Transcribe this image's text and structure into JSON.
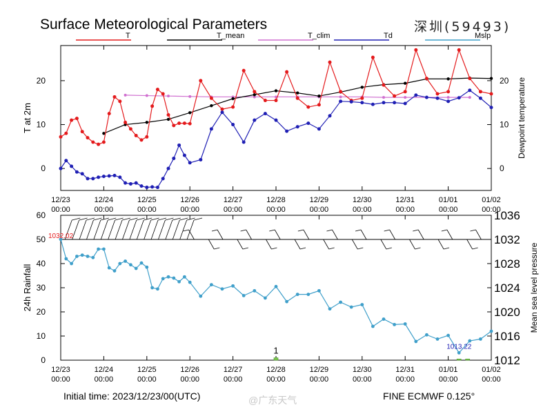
{
  "header": {
    "title": "Surface Meteorological Parameters",
    "station": "深圳(59493)"
  },
  "footer": {
    "initial_time": "Initial time: 2023/12/23/00(UTC)",
    "model": "FINE ECMWF 0.125°",
    "watermark": "@广东天气"
  },
  "colors": {
    "T": "#e41a1c",
    "T_mean": "#000000",
    "T_clim": "#d070d0",
    "Td": "#1f1fb4",
    "Mslp": "#3f9fca",
    "rain": "#7ec850"
  },
  "chart_data": [
    {
      "type": "line",
      "title": "",
      "legend": [
        "T",
        "T_mean",
        "T_clim",
        "Td",
        "Mslp"
      ],
      "legend_placement": "top",
      "ylabel": "T at 2m",
      "ylabel_right": "Dewpoint temperature",
      "ylim": [
        -5,
        28
      ],
      "yticks": [
        0,
        10,
        20
      ],
      "x_labels": [
        "12/23 00:00",
        "12/24 00:00",
        "12/25 00:00",
        "12/26 00:00",
        "12/27 00:00",
        "12/28 00:00",
        "12/29 00:00",
        "12/30 00:00",
        "12/31 00:00",
        "01/01 00:00",
        "01/02 00:00"
      ],
      "x_unit": "days since 12/23 00:00",
      "series": [
        {
          "name": "T",
          "x": [
            0,
            0.125,
            0.25,
            0.375,
            0.5,
            0.625,
            0.75,
            0.875,
            1.0,
            1.125,
            1.25,
            1.375,
            1.5,
            1.625,
            1.75,
            1.875,
            2.0,
            2.125,
            2.25,
            2.375,
            2.5,
            2.625,
            2.75,
            2.875,
            3.0,
            3.25,
            3.5,
            3.75,
            4.0,
            4.25,
            4.5,
            4.75,
            5.0,
            5.25,
            5.5,
            5.75,
            6.0,
            6.25,
            6.5,
            6.75,
            7.0,
            7.25,
            7.5,
            7.75,
            8.0,
            8.25,
            8.5,
            8.75,
            9.0,
            9.25,
            9.5,
            9.75,
            10.0
          ],
          "values": [
            7.2,
            8.0,
            11.0,
            11.4,
            8.4,
            7.0,
            6.0,
            5.5,
            6.0,
            12.5,
            16.3,
            15.3,
            10.5,
            9.0,
            7.5,
            6.5,
            7.2,
            14.2,
            18.0,
            17.0,
            12.2,
            9.8,
            10.3,
            10.3,
            10.2,
            20.0,
            16.0,
            13.5,
            14.0,
            22.3,
            17.5,
            15.5,
            15.5,
            22.0,
            16.0,
            14.0,
            14.5,
            24.2,
            17.5,
            15.5,
            16.0,
            25.3,
            19.0,
            16.5,
            17.5,
            27.0,
            20.5,
            17.0,
            17.5,
            27.0,
            20.5,
            17.5,
            17.0
          ]
        },
        {
          "name": "T_mean",
          "x": [
            1.0,
            1.5,
            2.0,
            2.5,
            3.0,
            3.5,
            4.0,
            4.5,
            5.0,
            5.5,
            6.0,
            6.5,
            7.0,
            7.5,
            8.0,
            8.5,
            9.0,
            9.5,
            10.0
          ],
          "values": [
            8.0,
            10.0,
            10.5,
            11.2,
            12.7,
            14.3,
            15.9,
            16.8,
            17.7,
            17.2,
            16.5,
            17.4,
            18.5,
            19.1,
            19.4,
            20.4,
            20.4,
            20.6,
            20.5
          ]
        },
        {
          "name": "T_clim",
          "x": [
            1.5,
            2.0,
            2.5,
            3.0,
            3.5,
            4.0,
            4.5,
            5.0,
            5.5,
            6.0,
            6.5,
            7.0,
            7.5,
            8.0,
            8.5,
            9.0,
            9.5
          ],
          "values": [
            16.7,
            16.6,
            16.5,
            16.4,
            16.3,
            16.3,
            16.3,
            16.3,
            16.3,
            16.3,
            16.3,
            16.3,
            16.2,
            16.2,
            16.2,
            16.2,
            16.2
          ]
        },
        {
          "name": "Td",
          "x": [
            0,
            0.125,
            0.25,
            0.375,
            0.5,
            0.625,
            0.75,
            0.875,
            1.0,
            1.125,
            1.25,
            1.375,
            1.5,
            1.625,
            1.75,
            1.875,
            2.0,
            2.125,
            2.25,
            2.375,
            2.5,
            2.625,
            2.75,
            2.875,
            3.0,
            3.25,
            3.5,
            3.75,
            4.0,
            4.25,
            4.5,
            4.75,
            5.0,
            5.25,
            5.5,
            5.75,
            6.0,
            6.25,
            6.5,
            6.75,
            7.0,
            7.25,
            7.5,
            7.75,
            8.0,
            8.25,
            8.5,
            8.75,
            9.0,
            9.25,
            9.5,
            9.75,
            10.0
          ],
          "values": [
            0.0,
            1.8,
            0.5,
            -0.8,
            -1.2,
            -2.3,
            -2.3,
            -2.0,
            -1.8,
            -1.7,
            -1.6,
            -2.0,
            -3.3,
            -3.5,
            -3.3,
            -4.0,
            -4.3,
            -4.2,
            -4.3,
            -2.3,
            0.0,
            2.3,
            5.3,
            3.0,
            1.3,
            2.0,
            9.0,
            12.8,
            10.0,
            6.0,
            11.0,
            12.5,
            11.0,
            8.5,
            9.5,
            10.3,
            9.0,
            12.0,
            15.3,
            15.2,
            15.0,
            14.6,
            15.0,
            15.0,
            14.8,
            16.7,
            16.2,
            16.0,
            15.3,
            16.1,
            17.8,
            16.0,
            13.9
          ]
        }
      ]
    },
    {
      "type": "line",
      "title": "",
      "ylabel": "24h Rainfall",
      "ylabel_right": "Mean sea level pressure",
      "ylim": [
        0,
        60
      ],
      "yticks": [
        0,
        10,
        20,
        30,
        40,
        50,
        60
      ],
      "ylim_right": [
        1012,
        1036
      ],
      "yticks_right": [
        1012,
        1016,
        1020,
        1024,
        1028,
        1032,
        1036
      ],
      "x_labels": [
        "12/23 00:00",
        "12/24 00:00",
        "12/25 00:00",
        "12/26 00:00",
        "12/27 00:00",
        "12/28 00:00",
        "12/29 00:00",
        "12/30 00:00",
        "12/31 00:00",
        "01/01 00:00",
        "01/02 00:00"
      ],
      "annotations": [
        "1032.02",
        "1013.22",
        "1"
      ],
      "series": [
        {
          "name": "Mslp",
          "x": [
            0,
            0.125,
            0.25,
            0.375,
            0.5,
            0.625,
            0.75,
            0.875,
            1.0,
            1.125,
            1.25,
            1.375,
            1.5,
            1.625,
            1.75,
            1.875,
            2.0,
            2.125,
            2.25,
            2.375,
            2.5,
            2.625,
            2.75,
            2.875,
            3.0,
            3.25,
            3.5,
            3.75,
            4.0,
            4.25,
            4.5,
            4.75,
            5.0,
            5.25,
            5.5,
            5.75,
            6.0,
            6.25,
            6.5,
            6.75,
            7.0,
            7.25,
            7.5,
            7.75,
            8.0,
            8.25,
            8.5,
            8.75,
            9.0,
            9.25,
            9.5,
            9.75,
            10.0
          ],
          "values": [
            1032.02,
            1028.8,
            1028.0,
            1029.2,
            1029.4,
            1029.2,
            1029.0,
            1030.4,
            1030.4,
            1027.3,
            1026.8,
            1028.0,
            1028.4,
            1027.8,
            1027.2,
            1028.1,
            1027.4,
            1024.0,
            1023.8,
            1025.5,
            1025.8,
            1025.6,
            1025.0,
            1025.8,
            1024.9,
            1022.6,
            1024.5,
            1023.8,
            1024.3,
            1022.7,
            1023.5,
            1022.3,
            1024.2,
            1021.7,
            1022.9,
            1022.9,
            1023.5,
            1020.5,
            1021.6,
            1020.8,
            1021.2,
            1017.6,
            1018.8,
            1017.9,
            1018.0,
            1015.1,
            1016.2,
            1015.5,
            1016.1,
            1013.22,
            1015.2,
            1015.5,
            1016.8
          ]
        },
        {
          "name": "Rainfall",
          "x": [
            5.0,
            9.25,
            9.45
          ],
          "values": [
            1,
            0.5,
            0.5
          ]
        }
      ]
    }
  ]
}
